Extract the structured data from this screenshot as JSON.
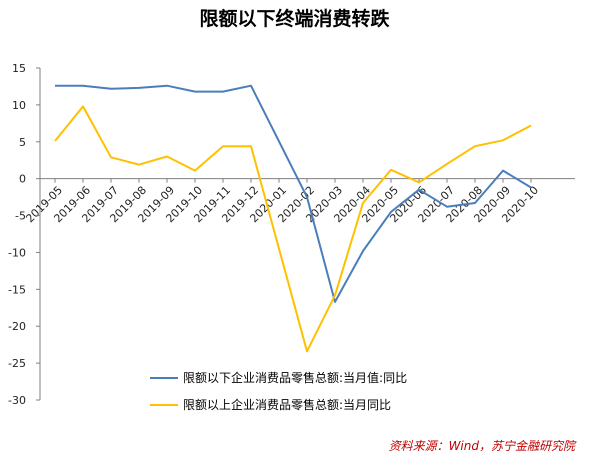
{
  "chart_data": {
    "type": "line",
    "title": "限额以下终端消费转跌",
    "categories": [
      "2019-05",
      "2019-06",
      "2019-07",
      "2019-08",
      "2019-09",
      "2019-10",
      "2019-11",
      "2019-12",
      "2020-01",
      "2020-02",
      "2020-03",
      "2020-04",
      "2020-05",
      "2020-06",
      "2020-07",
      "2020-08",
      "2020-09",
      "2020-10"
    ],
    "y_ticks": [
      15,
      10,
      5,
      0,
      -5,
      -10,
      -15,
      -20,
      -25,
      -30
    ],
    "ylim": [
      -30,
      15
    ],
    "grid": false,
    "legend_position": "bottom-center",
    "series": [
      {
        "name": "限额以下企业消费品零售总额:当月值:同比",
        "color": "#4A7EBB",
        "values": [
          12.6,
          12.6,
          12.2,
          12.3,
          12.6,
          11.8,
          11.8,
          12.6,
          null,
          -2.5,
          -16.7,
          -9.8,
          -4.5,
          -1.5,
          -3.8,
          -3.3,
          1.1,
          -1.2
        ]
      },
      {
        "name": "限额以上企业消费品零售总额:当月同比",
        "color": "#FFC000",
        "values": [
          5.1,
          9.8,
          2.9,
          1.9,
          3.0,
          1.1,
          4.4,
          4.4,
          null,
          -23.4,
          -15.8,
          -3.3,
          1.2,
          -0.5,
          2.0,
          4.4,
          5.2,
          7.2
        ]
      }
    ]
  },
  "source": "资料来源：Wind，苏宁金融研究院"
}
